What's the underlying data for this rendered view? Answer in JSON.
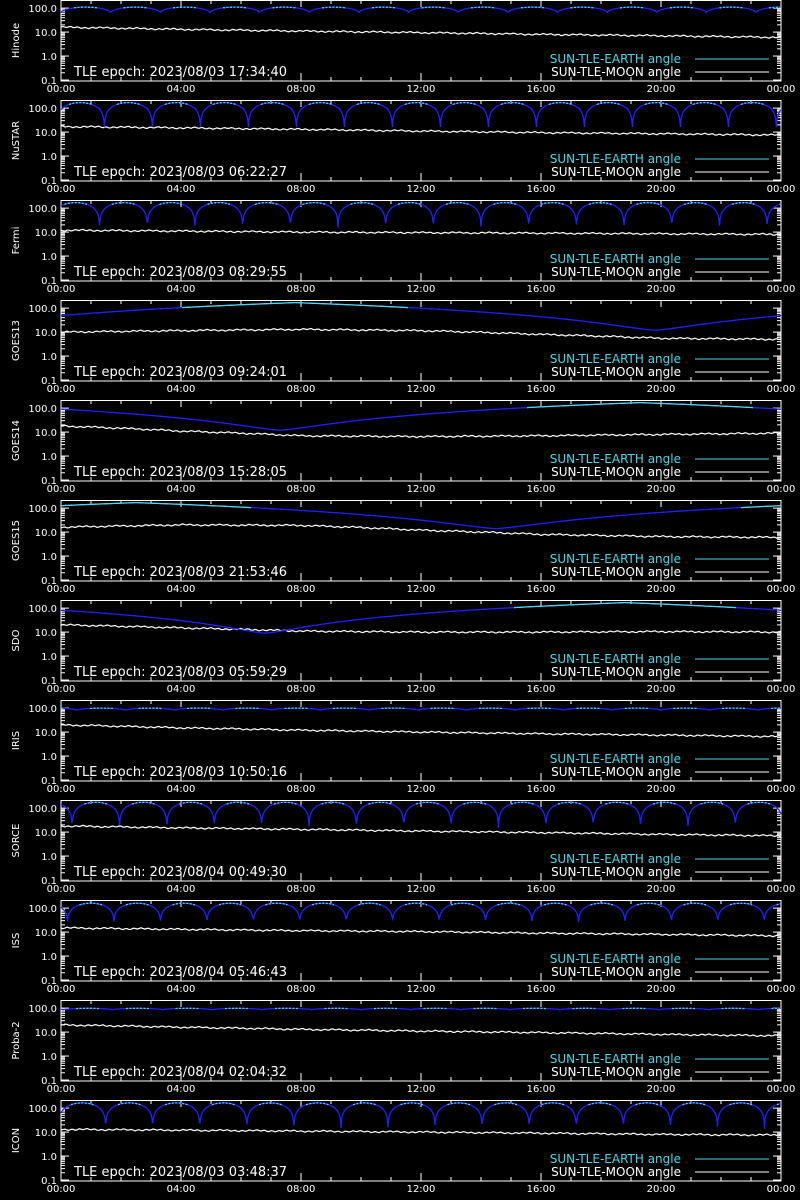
{
  "colors": {
    "background": "#000000",
    "axes": "#ffffff",
    "moon_line": "#ffffff",
    "earth_visible": "#4fd8e8",
    "earth_eclipse": "#2020ff"
  },
  "legend": {
    "earth_label": "SUN-TLE-EARTH angle",
    "moon_label": "SUN-TLE-MOON angle"
  },
  "chart_data": [
    {
      "type": "line",
      "satellite": "Hinode",
      "epoch_label": "TLE epoch: 2023/08/03 17:34:40",
      "x_ticks": [
        "00:00",
        "04:00",
        "08:00",
        "12:00",
        "16:00",
        "20:00",
        "00:00"
      ],
      "y_ticks": [
        "100.0",
        "10.0",
        "1.0",
        "0.1"
      ],
      "y_scale": "log",
      "ylim": [
        0.1,
        180
      ],
      "xlim_hours": [
        0,
        24
      ],
      "series": [
        {
          "name": "SUN-TLE-EARTH angle",
          "pattern": "orbital",
          "min": 65,
          "max": 110,
          "orbits": 14.5
        },
        {
          "name": "SUN-TLE-MOON angle",
          "x_hours": [
            0,
            4,
            8,
            12,
            16,
            20,
            24
          ],
          "y": [
            16,
            13,
            11,
            9.5,
            8,
            7,
            6
          ]
        }
      ]
    },
    {
      "type": "line",
      "satellite": "NuSTAR",
      "epoch_label": "TLE epoch: 2023/08/03 06:22:27",
      "x_ticks": [
        "00:00",
        "04:00",
        "08:00",
        "12:00",
        "16:00",
        "20:00",
        "00:00"
      ],
      "y_ticks": [
        "100.0",
        "10.0",
        "1.0",
        "0.1"
      ],
      "y_scale": "log",
      "ylim": [
        0.1,
        180
      ],
      "xlim_hours": [
        0,
        24
      ],
      "series": [
        {
          "name": "SUN-TLE-EARTH angle",
          "pattern": "orbital",
          "min": 9,
          "max": 170,
          "orbits": 15
        },
        {
          "name": "SUN-TLE-MOON angle",
          "x_hours": [
            0,
            4,
            8,
            12,
            16,
            20,
            24
          ],
          "y": [
            17,
            15,
            13,
            11,
            9.5,
            8.5,
            7.5
          ]
        }
      ]
    },
    {
      "type": "line",
      "satellite": "Fermi",
      "epoch_label": "TLE epoch: 2023/08/03 08:29:55",
      "x_ticks": [
        "00:00",
        "04:00",
        "08:00",
        "12:00",
        "16:00",
        "20:00",
        "00:00"
      ],
      "y_ticks": [
        "100.0",
        "10.0",
        "1.0",
        "0.1"
      ],
      "y_scale": "log",
      "ylim": [
        0.1,
        180
      ],
      "xlim_hours": [
        0,
        24
      ],
      "series": [
        {
          "name": "SUN-TLE-EARTH angle",
          "pattern": "orbital",
          "min": 13,
          "max": 170,
          "orbits": 15.1
        },
        {
          "name": "SUN-TLE-MOON angle",
          "x_hours": [
            0,
            4,
            8,
            12,
            16,
            20,
            24
          ],
          "y": [
            12,
            11,
            10,
            9.5,
            9,
            8.5,
            8
          ]
        }
      ]
    },
    {
      "type": "line",
      "satellite": "GOES13",
      "epoch_label": "TLE epoch: 2023/08/03 09:24:01",
      "x_ticks": [
        "00:00",
        "04:00",
        "08:00",
        "12:00",
        "16:00",
        "20:00",
        "00:00"
      ],
      "y_ticks": [
        "100.0",
        "10.0",
        "1.0",
        "0.1"
      ],
      "y_scale": "log",
      "ylim": [
        0.1,
        180
      ],
      "xlim_hours": [
        0,
        24
      ],
      "series": [
        {
          "name": "SUN-TLE-EARTH angle",
          "pattern": "geo",
          "min": 12,
          "max": 170,
          "min_hour": 19.8
        },
        {
          "name": "SUN-TLE-MOON angle",
          "x_hours": [
            0,
            4,
            8,
            12,
            16,
            20,
            24
          ],
          "y": [
            10,
            11.5,
            13,
            11.5,
            8,
            5.5,
            5
          ]
        }
      ]
    },
    {
      "type": "line",
      "satellite": "GOES14",
      "epoch_label": "TLE epoch: 2023/08/03 15:28:05",
      "x_ticks": [
        "00:00",
        "04:00",
        "08:00",
        "12:00",
        "16:00",
        "20:00",
        "00:00"
      ],
      "y_ticks": [
        "100.0",
        "10.0",
        "1.0",
        "0.1"
      ],
      "y_scale": "log",
      "ylim": [
        0.1,
        180
      ],
      "xlim_hours": [
        0,
        24
      ],
      "series": [
        {
          "name": "SUN-TLE-EARTH angle",
          "pattern": "geo",
          "min": 12,
          "max": 170,
          "min_hour": 7.3
        },
        {
          "name": "SUN-TLE-MOON angle",
          "x_hours": [
            0,
            4,
            8,
            12,
            16,
            20,
            24
          ],
          "y": [
            18,
            11,
            7,
            6.5,
            7,
            8,
            9
          ]
        }
      ]
    },
    {
      "type": "line",
      "satellite": "GOES15",
      "epoch_label": "TLE epoch: 2023/08/03 21:53:46",
      "x_ticks": [
        "00:00",
        "04:00",
        "08:00",
        "12:00",
        "16:00",
        "20:00",
        "00:00"
      ],
      "y_ticks": [
        "100.0",
        "10.0",
        "1.0",
        "0.1"
      ],
      "y_scale": "log",
      "ylim": [
        0.1,
        180
      ],
      "xlim_hours": [
        0,
        24
      ],
      "series": [
        {
          "name": "SUN-TLE-EARTH angle",
          "pattern": "geo",
          "min": 14,
          "max": 170,
          "min_hour": 14.5
        },
        {
          "name": "SUN-TLE-MOON angle",
          "x_hours": [
            0,
            4,
            8,
            12,
            16,
            20,
            24
          ],
          "y": [
            16,
            20,
            19,
            12,
            8,
            6.5,
            6
          ]
        }
      ]
    },
    {
      "type": "line",
      "satellite": "SDO",
      "epoch_label": "TLE epoch: 2023/08/03 05:59:29",
      "x_ticks": [
        "00:00",
        "04:00",
        "08:00",
        "12:00",
        "16:00",
        "20:00",
        "00:00"
      ],
      "y_ticks": [
        "100.0",
        "10.0",
        "1.0",
        "0.1"
      ],
      "y_scale": "log",
      "ylim": [
        0.1,
        180
      ],
      "xlim_hours": [
        0,
        24
      ],
      "series": [
        {
          "name": "SUN-TLE-EARTH angle",
          "pattern": "geo",
          "min": 9,
          "max": 170,
          "min_hour": 6.8
        },
        {
          "name": "SUN-TLE-MOON angle",
          "x_hours": [
            0,
            4,
            8,
            12,
            16,
            20,
            24
          ],
          "y": [
            20,
            15,
            11,
            10,
            10,
            10.5,
            10
          ]
        }
      ]
    },
    {
      "type": "line",
      "satellite": "IRIS",
      "epoch_label": "TLE epoch: 2023/08/03 10:50:16",
      "x_ticks": [
        "00:00",
        "04:00",
        "08:00",
        "12:00",
        "16:00",
        "20:00",
        "00:00"
      ],
      "y_ticks": [
        "100.0",
        "10.0",
        "1.0",
        "0.1"
      ],
      "y_scale": "log",
      "ylim": [
        0.1,
        180
      ],
      "xlim_hours": [
        0,
        24
      ],
      "series": [
        {
          "name": "SUN-TLE-EARTH angle",
          "pattern": "orbital",
          "min": 82,
          "max": 100,
          "orbits": 14.8
        },
        {
          "name": "SUN-TLE-MOON angle",
          "x_hours": [
            0,
            4,
            8,
            12,
            16,
            20,
            24
          ],
          "y": [
            20,
            15,
            12,
            10,
            8.5,
            7.5,
            6.5
          ]
        }
      ]
    },
    {
      "type": "line",
      "satellite": "SORCE",
      "epoch_label": "TLE epoch: 2023/08/04 00:49:30",
      "x_ticks": [
        "00:00",
        "04:00",
        "08:00",
        "12:00",
        "16:00",
        "20:00",
        "00:00"
      ],
      "y_ticks": [
        "100.0",
        "10.0",
        "1.0",
        "0.1"
      ],
      "y_scale": "log",
      "ylim": [
        0.1,
        180
      ],
      "xlim_hours": [
        0,
        24
      ],
      "series": [
        {
          "name": "SUN-TLE-EARTH angle",
          "pattern": "orbital",
          "min": 14,
          "max": 175,
          "orbits": 15.2
        },
        {
          "name": "SUN-TLE-MOON angle",
          "x_hours": [
            0,
            4,
            8,
            12,
            16,
            20,
            24
          ],
          "y": [
            18,
            15,
            13,
            11,
            9.5,
            8,
            7
          ]
        }
      ]
    },
    {
      "type": "line",
      "satellite": "ISS",
      "epoch_label": "TLE epoch: 2023/08/04 05:46:43",
      "x_ticks": [
        "00:00",
        "04:00",
        "08:00",
        "12:00",
        "16:00",
        "20:00",
        "00:00"
      ],
      "y_ticks": [
        "100.0",
        "10.0",
        "1.0",
        "0.1"
      ],
      "y_scale": "log",
      "ylim": [
        0.1,
        180
      ],
      "xlim_hours": [
        0,
        24
      ],
      "series": [
        {
          "name": "SUN-TLE-EARTH angle",
          "pattern": "orbital",
          "min": 25,
          "max": 160,
          "orbits": 15.5
        },
        {
          "name": "SUN-TLE-MOON angle",
          "x_hours": [
            0,
            4,
            8,
            12,
            16,
            20,
            24
          ],
          "y": [
            15,
            13,
            11.5,
            10.5,
            9,
            8,
            7
          ]
        }
      ]
    },
    {
      "type": "line",
      "satellite": "Proba-2",
      "epoch_label": "TLE epoch: 2023/08/04 02:04:32",
      "x_ticks": [
        "00:00",
        "04:00",
        "08:00",
        "12:00",
        "16:00",
        "20:00",
        "00:00"
      ],
      "y_ticks": [
        "100.0",
        "10.0",
        "1.0",
        "0.1"
      ],
      "y_scale": "log",
      "ylim": [
        0.1,
        180
      ],
      "xlim_hours": [
        0,
        24
      ],
      "series": [
        {
          "name": "SUN-TLE-EARTH angle",
          "pattern": "orbital",
          "min": 85,
          "max": 98,
          "orbits": 14.5
        },
        {
          "name": "SUN-TLE-MOON angle",
          "x_hours": [
            0,
            4,
            8,
            12,
            16,
            20,
            24
          ],
          "y": [
            20,
            16,
            13,
            11,
            9.5,
            8,
            7
          ]
        }
      ]
    },
    {
      "type": "line",
      "satellite": "ICON",
      "epoch_label": "TLE epoch: 2023/08/03 03:48:37",
      "x_ticks": [
        "00:00",
        "04:00",
        "08:00",
        "12:00",
        "16:00",
        "20:00",
        "00:00"
      ],
      "y_ticks": [
        "100.0",
        "10.0",
        "1.0",
        "0.1"
      ],
      "y_scale": "log",
      "ylim": [
        0.1,
        180
      ],
      "xlim_hours": [
        0,
        24
      ],
      "series": [
        {
          "name": "SUN-TLE-EARTH angle",
          "pattern": "orbital",
          "min": 12,
          "max": 165,
          "orbits": 15.3
        },
        {
          "name": "SUN-TLE-MOON angle",
          "x_hours": [
            0,
            4,
            8,
            12,
            16,
            20,
            24
          ],
          "y": [
            13,
            12,
            11,
            10,
            9,
            8,
            7.5
          ]
        }
      ]
    }
  ]
}
